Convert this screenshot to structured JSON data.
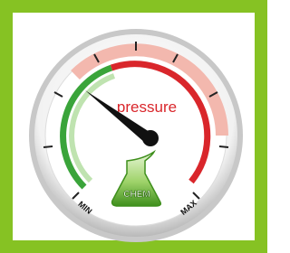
{
  "gauge": {
    "label": "pressure",
    "min_label": "MIN",
    "max_label": "MAX",
    "badge": "CHEM"
  }
}
